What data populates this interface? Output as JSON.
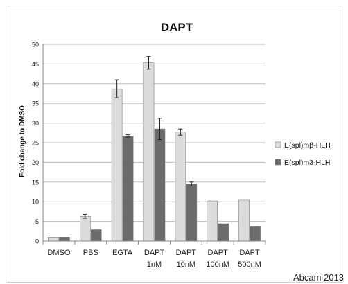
{
  "chart_data": {
    "type": "bar",
    "title": "DAPT",
    "xlabel": "",
    "ylabel": "Fold change to DMSO",
    "ylim": [
      0,
      50
    ],
    "yticks": [
      0,
      5,
      10,
      15,
      20,
      25,
      30,
      35,
      40,
      45,
      50
    ],
    "grid": true,
    "legend_position": "right",
    "categories": [
      [
        "DMSO"
      ],
      [
        "PBS"
      ],
      [
        "EGTA"
      ],
      [
        "DAPT",
        "1nM"
      ],
      [
        "DAPT",
        "10nM"
      ],
      [
        "DAPT",
        "100nM"
      ],
      [
        "DAPT",
        "500nM"
      ]
    ],
    "series": [
      {
        "name": "E(spl)mβ-HLH",
        "color": "#dcdcdc",
        "values": [
          1,
          6.3,
          38.7,
          45.3,
          27.7,
          10.2,
          10.4
        ],
        "errors": [
          0,
          0.5,
          2.3,
          1.6,
          0.8,
          0,
          0
        ]
      },
      {
        "name": "E(spl)m3-HLH",
        "color": "#6b6b6b",
        "values": [
          1,
          2.9,
          26.7,
          28.5,
          14.5,
          4.4,
          3.8
        ],
        "errors": [
          0,
          0,
          0.3,
          2.7,
          0.5,
          0,
          0
        ]
      }
    ]
  },
  "watermark": "Abcam 2013"
}
